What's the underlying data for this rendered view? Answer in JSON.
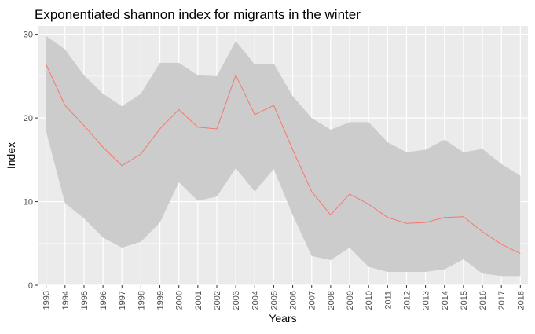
{
  "chart_data": {
    "type": "area",
    "title": "Exponentiated shannon index for migrants in the winter",
    "xlabel": "Years",
    "ylabel": "Index",
    "ylim": [
      0,
      31
    ],
    "y_ticks": [
      0,
      10,
      20,
      30
    ],
    "x": [
      1993,
      1994,
      1995,
      1996,
      1997,
      1998,
      1999,
      2000,
      2001,
      2002,
      2003,
      2004,
      2005,
      2006,
      2007,
      2008,
      2009,
      2010,
      2011,
      2012,
      2013,
      2014,
      2015,
      2016,
      2017,
      2018
    ],
    "x_tick_labels": [
      "1993",
      "1994",
      "1995",
      "1996",
      "1997",
      "1998",
      "1999",
      "2000",
      "2001",
      "2002",
      "2003",
      "2004",
      "2005",
      "2006",
      "2007",
      "2008",
      "2009",
      "2010",
      "2011",
      "2012",
      "2013",
      "2014",
      "2015",
      "2016",
      "2017",
      "2018"
    ],
    "grid": true,
    "series": [
      {
        "kind": "line",
        "color": "#F8766D",
        "values": [
          26.4,
          21.5,
          19.1,
          16.5,
          14.3,
          15.7,
          18.7,
          21.0,
          18.9,
          18.7,
          25.1,
          20.4,
          21.5,
          16.2,
          11.2,
          8.4,
          10.9,
          9.7,
          8.1,
          7.4,
          7.5,
          8.1,
          8.2,
          6.4,
          4.9,
          3.8
        ]
      },
      {
        "kind": "band",
        "color": "#CCCCCC",
        "upper": [
          29.8,
          28.2,
          25.1,
          22.9,
          21.4,
          22.9,
          26.6,
          26.6,
          25.1,
          25.0,
          29.2,
          26.4,
          26.5,
          22.6,
          20.0,
          18.6,
          19.5,
          19.5,
          17.1,
          15.9,
          16.2,
          17.4,
          15.9,
          16.3,
          14.5,
          13.1
        ],
        "lower": [
          18.4,
          9.8,
          8.0,
          5.7,
          4.5,
          5.2,
          7.5,
          12.3,
          10.1,
          10.6,
          14.0,
          11.2,
          13.9,
          8.4,
          3.5,
          3.0,
          4.5,
          2.2,
          1.6,
          1.6,
          1.6,
          1.9,
          3.1,
          1.4,
          1.1,
          1.1
        ]
      }
    ]
  }
}
